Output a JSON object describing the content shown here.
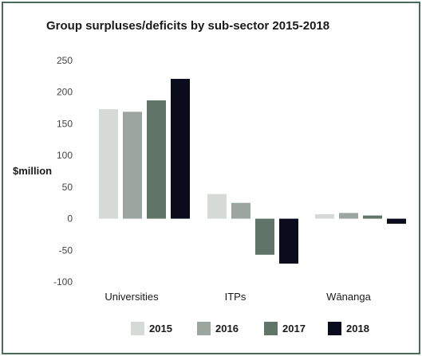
{
  "chart_data": {
    "type": "bar",
    "title": "Group surpluses/deficits by sub-sector 2015-2018",
    "ylabel": "$million",
    "xlabel": "",
    "categories": [
      "Universities",
      "ITPs",
      "Wānanga"
    ],
    "ylim": [
      -100,
      250
    ],
    "yticks": [
      250,
      200,
      150,
      100,
      50,
      0,
      -50,
      -100
    ],
    "grid": false,
    "legend_position": "bottom",
    "series": [
      {
        "name": "2015",
        "color": "#d6dad7",
        "values": [
          173,
          39,
          7
        ]
      },
      {
        "name": "2016",
        "color": "#9ca59f",
        "values": [
          169,
          25,
          9
        ]
      },
      {
        "name": "2017",
        "color": "#617468",
        "values": [
          187,
          -57,
          5
        ]
      },
      {
        "name": "2018",
        "color": "#0b0b1e",
        "values": [
          221,
          -71,
          -8
        ]
      }
    ]
  }
}
